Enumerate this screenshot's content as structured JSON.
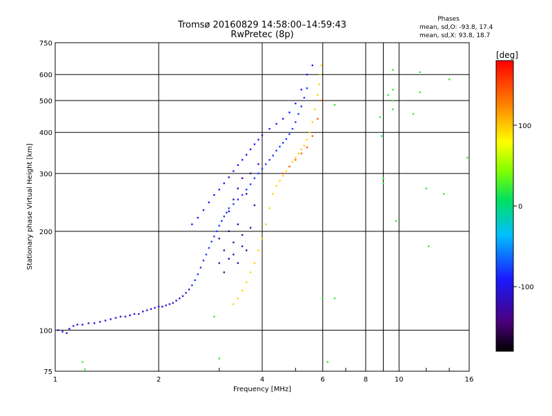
{
  "chart_data": {
    "type": "scatter",
    "title": "Tromsø 20160829 14:58:00–14:59:43",
    "subtitle": "RwPretec (8p)",
    "phase_info": {
      "heading": "Phases",
      "line_o": "mean, sd,O: -93.8, 17.4",
      "line_x": "mean, sd,X:  93.8, 18.7"
    },
    "xlabel": "Frequency [MHz]",
    "ylabel": "Stationary phase Virtual Height [km]",
    "x_scale": "log",
    "y_scale": "log",
    "xlim": [
      1,
      16
    ],
    "ylim": [
      75,
      750
    ],
    "x_ticks": [
      1,
      2,
      4,
      6,
      8,
      10,
      16
    ],
    "x_tick_labels": [
      "1",
      "2",
      "4",
      "6",
      "8",
      "10",
      "16"
    ],
    "y_ticks": [
      75,
      100,
      200,
      300,
      400,
      500,
      600,
      750
    ],
    "y_tick_labels": [
      "75",
      "100",
      "200",
      "300",
      "400",
      "500",
      "600",
      "750"
    ],
    "grid": true,
    "colorbar": {
      "label": "[deg]",
      "min": -180,
      "max": 180,
      "ticks": [
        100,
        0,
        -100
      ],
      "tick_labels": [
        "100",
        "0",
        "-100"
      ]
    },
    "series": [
      {
        "trace": "low",
        "phase": -105,
        "points": [
          [
            1.02,
            100
          ],
          [
            1.05,
            99
          ],
          [
            1.08,
            98
          ],
          [
            1.1,
            101
          ],
          [
            1.13,
            103
          ],
          [
            1.16,
            104
          ],
          [
            1.2,
            104
          ],
          [
            1.25,
            105
          ],
          [
            1.3,
            105
          ],
          [
            1.35,
            106
          ],
          [
            1.4,
            107
          ],
          [
            1.45,
            108
          ],
          [
            1.5,
            109
          ],
          [
            1.55,
            110
          ],
          [
            1.6,
            110
          ],
          [
            1.65,
            111
          ],
          [
            1.7,
            112
          ],
          [
            1.75,
            112
          ],
          [
            1.8,
            114
          ],
          [
            1.85,
            115
          ],
          [
            1.9,
            116
          ],
          [
            1.95,
            117
          ],
          [
            2.0,
            118
          ],
          [
            2.05,
            118
          ],
          [
            2.1,
            119
          ],
          [
            2.15,
            120
          ],
          [
            2.2,
            121
          ],
          [
            2.25,
            123
          ],
          [
            2.3,
            125
          ],
          [
            2.35,
            127
          ],
          [
            2.4,
            130
          ],
          [
            2.45,
            133
          ]
        ]
      },
      {
        "trace": "o-lower",
        "phase": -80,
        "points": [
          [
            2.5,
            137
          ],
          [
            2.55,
            142
          ],
          [
            2.6,
            148
          ],
          [
            2.65,
            155
          ],
          [
            2.7,
            163
          ],
          [
            2.75,
            170
          ],
          [
            2.8,
            178
          ],
          [
            2.85,
            186
          ],
          [
            2.9,
            193
          ],
          [
            2.95,
            200
          ],
          [
            3.0,
            208
          ],
          [
            3.05,
            215
          ],
          [
            3.1,
            222
          ],
          [
            3.15,
            228
          ],
          [
            3.2,
            235
          ],
          [
            3.3,
            242
          ],
          [
            3.4,
            250
          ],
          [
            3.5,
            258
          ],
          [
            3.6,
            268
          ],
          [
            3.7,
            278
          ],
          [
            3.8,
            290
          ],
          [
            3.9,
            300
          ],
          [
            4.0,
            310
          ],
          [
            4.1,
            320
          ],
          [
            4.2,
            330
          ],
          [
            4.3,
            340
          ],
          [
            4.4,
            352
          ],
          [
            4.5,
            362
          ],
          [
            4.6,
            372
          ],
          [
            4.7,
            382
          ],
          [
            4.8,
            395
          ],
          [
            4.9,
            410
          ],
          [
            5.0,
            430
          ],
          [
            5.1,
            455
          ],
          [
            5.2,
            480
          ],
          [
            5.3,
            510
          ],
          [
            5.4,
            545
          ]
        ]
      },
      {
        "trace": "o-upper",
        "phase": -95,
        "points": [
          [
            2.5,
            210
          ],
          [
            2.6,
            220
          ],
          [
            2.7,
            232
          ],
          [
            2.8,
            245
          ],
          [
            2.9,
            258
          ],
          [
            3.0,
            268
          ],
          [
            3.1,
            280
          ],
          [
            3.2,
            292
          ],
          [
            3.3,
            305
          ],
          [
            3.4,
            318
          ],
          [
            3.5,
            330
          ],
          [
            3.6,
            342
          ],
          [
            3.7,
            355
          ],
          [
            3.8,
            368
          ],
          [
            3.9,
            380
          ],
          [
            4.0,
            392
          ],
          [
            4.2,
            410
          ],
          [
            4.4,
            425
          ],
          [
            4.6,
            440
          ],
          [
            4.8,
            460
          ],
          [
            5.0,
            490
          ],
          [
            5.2,
            540
          ],
          [
            5.4,
            600
          ],
          [
            5.6,
            640
          ]
        ]
      },
      {
        "trace": "o-spread",
        "phase": -130,
        "points": [
          [
            3.0,
            190
          ],
          [
            3.1,
            175
          ],
          [
            3.2,
            200
          ],
          [
            3.3,
            185
          ],
          [
            3.4,
            210
          ],
          [
            3.5,
            195
          ],
          [
            3.6,
            175
          ],
          [
            3.7,
            205
          ],
          [
            3.2,
            230
          ],
          [
            3.3,
            250
          ],
          [
            3.4,
            270
          ],
          [
            3.5,
            290
          ],
          [
            3.6,
            260
          ],
          [
            3.7,
            300
          ],
          [
            3.8,
            240
          ],
          [
            3.9,
            320
          ],
          [
            3.0,
            160
          ],
          [
            3.1,
            150
          ],
          [
            3.2,
            165
          ],
          [
            3.3,
            170
          ],
          [
            3.4,
            160
          ],
          [
            3.5,
            180
          ]
        ]
      },
      {
        "trace": "x-trace",
        "phase": 95,
        "points": [
          [
            3.3,
            120
          ],
          [
            3.4,
            125
          ],
          [
            3.5,
            132
          ],
          [
            3.6,
            140
          ],
          [
            3.7,
            150
          ],
          [
            3.8,
            160
          ],
          [
            3.9,
            175
          ],
          [
            4.0,
            190
          ],
          [
            4.1,
            210
          ],
          [
            4.2,
            235
          ],
          [
            4.3,
            260
          ],
          [
            4.4,
            275
          ],
          [
            4.5,
            285
          ],
          [
            4.6,
            295
          ],
          [
            4.7,
            305
          ],
          [
            4.8,
            315
          ],
          [
            4.9,
            325
          ],
          [
            5.0,
            335
          ],
          [
            5.1,
            345
          ],
          [
            5.2,
            355
          ],
          [
            5.3,
            365
          ],
          [
            5.4,
            380
          ],
          [
            5.5,
            400
          ],
          [
            5.6,
            430
          ],
          [
            5.7,
            470
          ],
          [
            5.8,
            520
          ],
          [
            5.85,
            560
          ],
          [
            5.9,
            600
          ],
          [
            5.95,
            640
          ]
        ]
      },
      {
        "trace": "x-orange",
        "phase": 140,
        "points": [
          [
            4.6,
            300
          ],
          [
            4.8,
            315
          ],
          [
            5.0,
            330
          ],
          [
            5.2,
            345
          ],
          [
            5.4,
            360
          ],
          [
            5.6,
            390
          ],
          [
            5.8,
            440
          ],
          [
            5.9,
            500
          ]
        ]
      },
      {
        "trace": "sparse",
        "phase": 20,
        "points": [
          [
            1.2,
            80
          ],
          [
            1.22,
            76
          ],
          [
            2.9,
            110
          ],
          [
            3.0,
            82
          ],
          [
            6.0,
            125
          ],
          [
            6.2,
            80
          ],
          [
            6.5,
            485
          ],
          [
            6.5,
            125
          ],
          [
            8.8,
            445
          ],
          [
            8.9,
            390
          ],
          [
            9.0,
            280
          ],
          [
            9.0,
            290
          ],
          [
            9.6,
            620
          ],
          [
            9.6,
            540
          ],
          [
            9.6,
            500
          ],
          [
            9.6,
            470
          ],
          [
            9.8,
            215
          ],
          [
            11.0,
            455
          ],
          [
            11.5,
            610
          ],
          [
            11.5,
            530
          ],
          [
            12.0,
            270
          ],
          [
            13.5,
            260
          ],
          [
            14.0,
            580
          ],
          [
            15.8,
            335
          ],
          [
            12.2,
            180
          ],
          [
            9.3,
            520
          ]
        ]
      }
    ]
  }
}
